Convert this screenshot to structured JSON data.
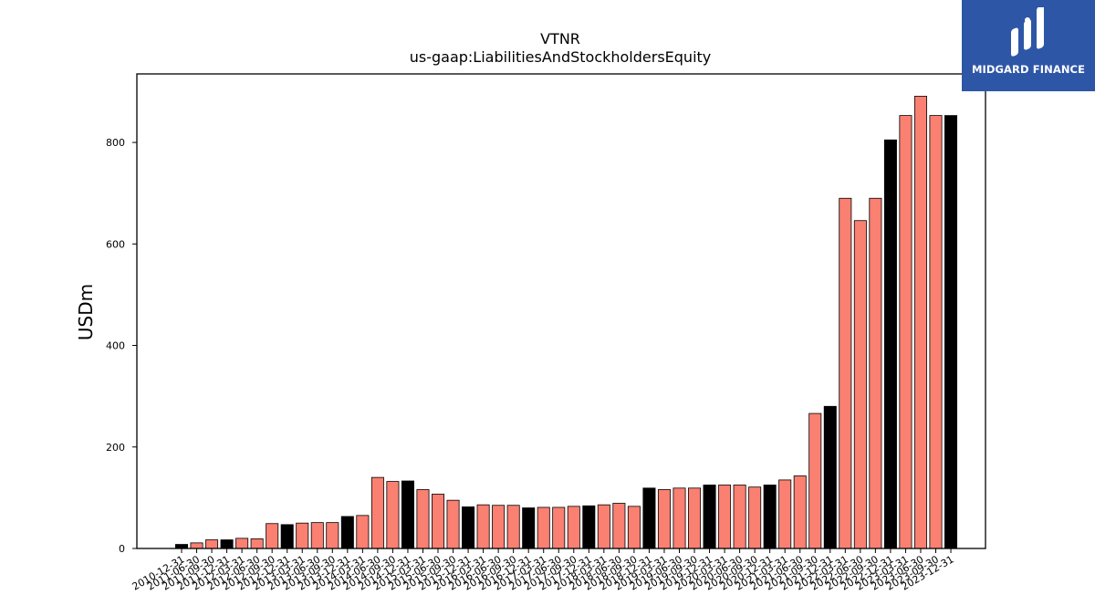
{
  "brand": {
    "name": "MIDGARD FINANCE",
    "bg_color": "#2d56a6"
  },
  "chart_data": {
    "type": "bar",
    "title": "VTNR",
    "subtitle": "us-gaap:LiabilitiesAndStockholdersEquity",
    "xlabel": "",
    "ylabel": "USDm",
    "ylim": [
      0,
      935
    ],
    "yticks": [
      0,
      200,
      400,
      600,
      800
    ],
    "grid": false,
    "colors": {
      "10-Q": "#fa8072",
      "10-K": "#000000"
    },
    "categories": [
      "2010-12-31",
      "2011-06-30",
      "2011-09-30",
      "2011-12-31",
      "2012-03-31",
      "2012-06-30",
      "2012-09-30",
      "2012-12-31",
      "2013-03-31",
      "2013-06-30",
      "2013-09-30",
      "2013-12-31",
      "2014-03-31",
      "2014-06-30",
      "2014-09-30",
      "2014-12-31",
      "2015-03-31",
      "2015-06-30",
      "2015-09-30",
      "2015-12-31",
      "2016-03-31",
      "2016-06-30",
      "2016-09-30",
      "2016-12-31",
      "2017-03-31",
      "2017-06-30",
      "2017-09-30",
      "2017-12-31",
      "2018-03-31",
      "2018-06-30",
      "2018-09-30",
      "2018-12-31",
      "2019-03-31",
      "2019-06-30",
      "2019-09-30",
      "2019-12-31",
      "2020-03-31",
      "2020-06-30",
      "2020-09-30",
      "2020-12-31",
      "2021-03-31",
      "2021-06-30",
      "2021-09-30",
      "2021-12-31",
      "2022-03-31",
      "2022-06-30",
      "2022-09-30",
      "2022-12-31",
      "2023-03-31",
      "2023-06-30",
      "2023-09-30",
      "2023-12-31"
    ],
    "values": [
      8,
      11,
      17,
      17,
      20,
      19,
      49,
      47,
      50,
      51,
      51,
      63,
      65,
      140,
      132,
      133,
      116,
      107,
      95,
      82,
      86,
      85,
      85,
      80,
      81,
      81,
      83,
      84,
      86,
      89,
      83,
      119,
      116,
      119,
      119,
      125,
      125,
      125,
      121,
      125,
      135,
      143,
      266,
      280,
      690,
      646,
      690,
      805,
      853,
      891,
      853,
      853
    ],
    "annual": [
      true,
      false,
      false,
      true,
      false,
      false,
      false,
      true,
      false,
      false,
      false,
      true,
      false,
      false,
      false,
      true,
      false,
      false,
      false,
      true,
      false,
      false,
      false,
      true,
      false,
      false,
      false,
      true,
      false,
      false,
      false,
      true,
      false,
      false,
      false,
      true,
      false,
      false,
      false,
      true,
      false,
      false,
      false,
      true,
      false,
      false,
      false,
      true,
      false,
      false,
      false,
      true
    ]
  }
}
